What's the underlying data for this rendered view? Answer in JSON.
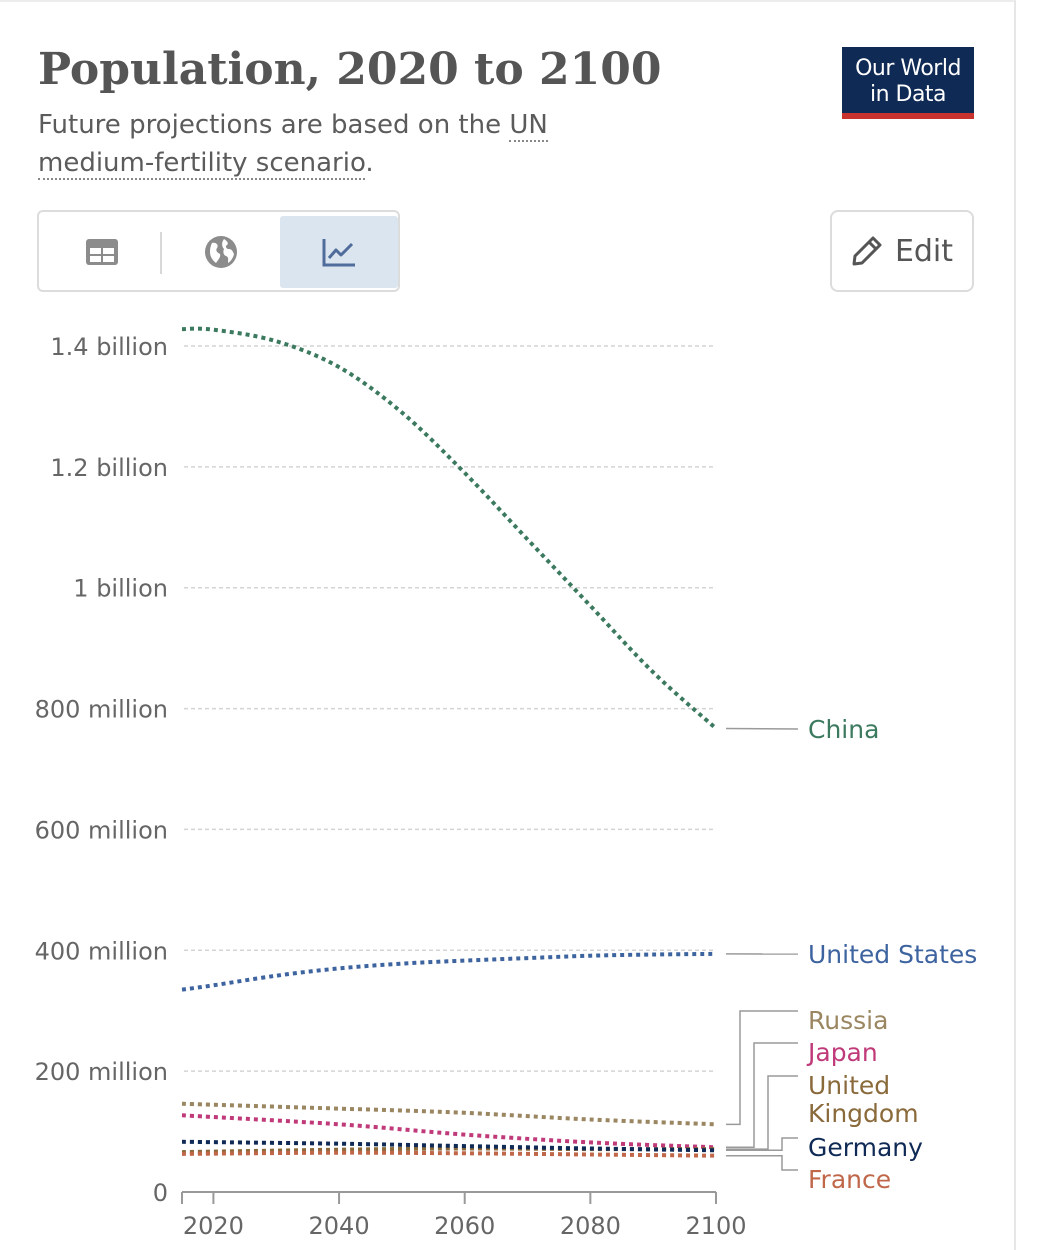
{
  "header": {
    "title": "Population, 2020 to 2100",
    "subtitle_prefix": "Future projections are based on the ",
    "subtitle_link": "UN medium-fertility scenario",
    "subtitle_suffix": "."
  },
  "logo": {
    "line1": "Our World",
    "line2": "in Data",
    "bg_color": "#0f2a55",
    "accent_color": "#c8322f"
  },
  "toolbar": {
    "tabs": [
      {
        "name": "table",
        "icon": "table-icon"
      },
      {
        "name": "map",
        "icon": "globe-icon"
      },
      {
        "name": "chart",
        "icon": "line-chart-icon",
        "active": true
      }
    ],
    "edit_label": "Edit",
    "edit_icon": "pencil-icon"
  },
  "chart_data": {
    "type": "line",
    "title": "Population, 2020 to 2100",
    "xlabel": "",
    "ylabel": "",
    "xlim": [
      2015,
      2100
    ],
    "ylim": [
      0,
      1430000000
    ],
    "x_ticks": [
      2020,
      2040,
      2060,
      2080,
      2100
    ],
    "y_ticks": [
      {
        "value": 0,
        "label": "0"
      },
      {
        "value": 200000000,
        "label": "200 million"
      },
      {
        "value": 400000000,
        "label": "400 million"
      },
      {
        "value": 600000000,
        "label": "600 million"
      },
      {
        "value": 800000000,
        "label": "800 million"
      },
      {
        "value": 1000000000,
        "label": "1 billion"
      },
      {
        "value": 1200000000,
        "label": "1.2 billion"
      },
      {
        "value": 1400000000,
        "label": "1.4 billion"
      }
    ],
    "grid": true,
    "line_style": "dotted",
    "series": [
      {
        "name": "China",
        "color": "#3c7a5f",
        "x": [
          2015,
          2020,
          2030,
          2040,
          2050,
          2060,
          2070,
          2080,
          2090,
          2100
        ],
        "values": [
          1428000000,
          1427000000,
          1408000000,
          1365000000,
          1290000000,
          1190000000,
          1080000000,
          970000000,
          860000000,
          767000000
        ]
      },
      {
        "name": "United States",
        "color": "#3e64a0",
        "x": [
          2015,
          2020,
          2030,
          2040,
          2050,
          2060,
          2070,
          2080,
          2090,
          2100
        ],
        "values": [
          335000000,
          342000000,
          358000000,
          370000000,
          378000000,
          383000000,
          387000000,
          391000000,
          393000000,
          394000000
        ]
      },
      {
        "name": "Russia",
        "color": "#9a8660",
        "x": [
          2015,
          2040,
          2060,
          2080,
          2100
        ],
        "values": [
          146000000,
          138000000,
          131000000,
          120000000,
          112000000
        ]
      },
      {
        "name": "Japan",
        "color": "#c03a7a",
        "x": [
          2015,
          2040,
          2060,
          2080,
          2100
        ],
        "values": [
          127000000,
          112000000,
          95000000,
          82000000,
          74000000
        ]
      },
      {
        "name": "United Kingdom",
        "color": "#8a6a3a",
        "x": [
          2015,
          2040,
          2060,
          2080,
          2100
        ],
        "values": [
          66000000,
          70000000,
          72000000,
          71000000,
          71000000
        ]
      },
      {
        "name": "Germany",
        "color": "#0f2a55",
        "x": [
          2015,
          2040,
          2060,
          2080,
          2100
        ],
        "values": [
          83000000,
          80000000,
          76000000,
          72000000,
          69000000
        ]
      },
      {
        "name": "France",
        "color": "#c0674a",
        "x": [
          2015,
          2040,
          2060,
          2080,
          2100
        ],
        "values": [
          63000000,
          65000000,
          64000000,
          62000000,
          60000000
        ]
      }
    ],
    "legend_labels": [
      {
        "series": "China",
        "lines": [
          "China"
        ]
      },
      {
        "series": "United States",
        "lines": [
          "United States"
        ]
      },
      {
        "series": "Russia",
        "lines": [
          "Russia"
        ]
      },
      {
        "series": "Japan",
        "lines": [
          "Japan"
        ]
      },
      {
        "series": "United Kingdom",
        "lines": [
          "United",
          "Kingdom"
        ]
      },
      {
        "series": "Germany",
        "lines": [
          "Germany"
        ]
      },
      {
        "series": "France",
        "lines": [
          "France"
        ]
      }
    ]
  }
}
